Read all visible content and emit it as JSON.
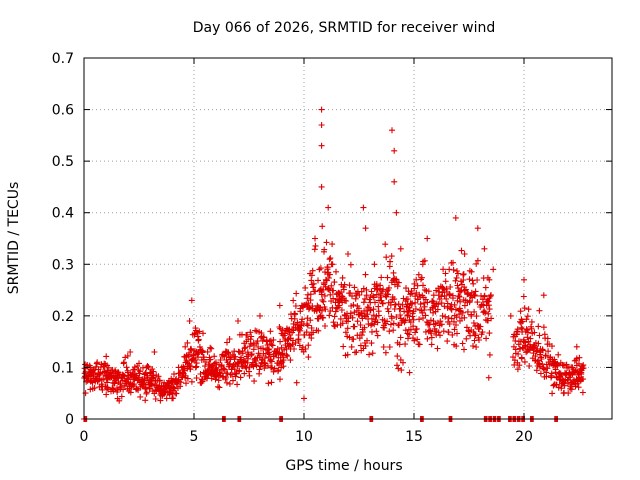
{
  "chart_data": {
    "type": "scatter",
    "title": "Day 066 of 2026, SRMTID for receiver wind",
    "xlabel": "GPS time / hours",
    "ylabel": "SRMTID / TECUs",
    "xlim": [
      0,
      24
    ],
    "ylim": [
      0,
      0.7
    ],
    "xticks": [
      0,
      5,
      10,
      15,
      20
    ],
    "yticks": [
      0,
      0.1,
      0.2,
      0.3,
      0.4,
      0.5,
      0.6,
      0.7
    ],
    "xtick_labels": [
      "0",
      "5",
      "10",
      "15",
      "20"
    ],
    "ytick_labels": [
      "0",
      "0.1",
      "0.2",
      "0.3",
      "0.4",
      "0.5",
      "0.6",
      "0.7"
    ],
    "grid": true,
    "marker": "plus",
    "color": "#e00000",
    "envelope": {
      "x": [
        0,
        0.5,
        1.0,
        1.5,
        2.0,
        2.5,
        3.0,
        3.5,
        4.0,
        4.5,
        5.0,
        5.5,
        6.0,
        6.5,
        7.0,
        7.5,
        8.0,
        8.5,
        9.0,
        9.5,
        10.0,
        10.5,
        11.0,
        11.5,
        12.0,
        12.5,
        13.0,
        13.5,
        14.0,
        14.5,
        15.0,
        15.5,
        16.0,
        16.5,
        17.0,
        17.5,
        18.0,
        18.5,
        19.0,
        19.5,
        20.0,
        20.5,
        21.0,
        21.5,
        22.0,
        22.5,
        22.7
      ],
      "median": [
        0.08,
        0.09,
        0.08,
        0.07,
        0.08,
        0.08,
        0.07,
        0.06,
        0.06,
        0.09,
        0.14,
        0.11,
        0.09,
        0.1,
        0.12,
        0.13,
        0.13,
        0.12,
        0.13,
        0.16,
        0.17,
        0.24,
        0.27,
        0.22,
        0.21,
        0.2,
        0.2,
        0.22,
        0.24,
        0.19,
        0.21,
        0.22,
        0.2,
        0.22,
        0.25,
        0.22,
        0.2,
        0.21,
        null,
        0.15,
        0.17,
        0.13,
        0.12,
        0.09,
        0.08,
        0.09,
        0.09
      ],
      "spread": [
        0.03,
        0.03,
        0.03,
        0.03,
        0.03,
        0.03,
        0.03,
        0.02,
        0.02,
        0.03,
        0.05,
        0.04,
        0.03,
        0.04,
        0.04,
        0.05,
        0.05,
        0.04,
        0.05,
        0.06,
        0.07,
        0.08,
        0.09,
        0.07,
        0.07,
        0.07,
        0.07,
        0.08,
        0.1,
        0.07,
        0.06,
        0.07,
        0.06,
        0.08,
        0.08,
        0.07,
        0.08,
        0.07,
        null,
        0.05,
        0.06,
        0.05,
        0.05,
        0.03,
        0.03,
        0.03,
        0.03
      ]
    },
    "points": [
      [
        0.1,
        0.08
      ],
      [
        0.3,
        0.1
      ],
      [
        0.6,
        0.11
      ],
      [
        1.0,
        0.09
      ],
      [
        1.5,
        0.06
      ],
      [
        2.0,
        0.09
      ],
      [
        2.1,
        0.13
      ],
      [
        2.5,
        0.08
      ],
      [
        3.0,
        0.09
      ],
      [
        3.2,
        0.13
      ],
      [
        3.6,
        0.05
      ],
      [
        4.0,
        0.04
      ],
      [
        4.3,
        0.1
      ],
      [
        4.6,
        0.14
      ],
      [
        4.8,
        0.19
      ],
      [
        4.9,
        0.23
      ],
      [
        5.2,
        0.13
      ],
      [
        5.5,
        0.09
      ],
      [
        6.0,
        0.11
      ],
      [
        6.5,
        0.13
      ],
      [
        7.0,
        0.19
      ],
      [
        7.6,
        0.16
      ],
      [
        8.0,
        0.2
      ],
      [
        8.5,
        0.1
      ],
      [
        8.9,
        0.22
      ],
      [
        9.3,
        0.14
      ],
      [
        9.9,
        0.22
      ],
      [
        10.0,
        0.04
      ],
      [
        10.2,
        0.12
      ],
      [
        10.5,
        0.35
      ],
      [
        10.7,
        0.29
      ],
      [
        10.8,
        0.6
      ],
      [
        10.8,
        0.57
      ],
      [
        10.8,
        0.53
      ],
      [
        10.8,
        0.45
      ],
      [
        11.1,
        0.41
      ],
      [
        11.3,
        0.3
      ],
      [
        11.6,
        0.22
      ],
      [
        12.0,
        0.32
      ],
      [
        12.4,
        0.24
      ],
      [
        12.7,
        0.41
      ],
      [
        12.8,
        0.37
      ],
      [
        13.2,
        0.3
      ],
      [
        13.5,
        0.24
      ],
      [
        14.0,
        0.56
      ],
      [
        14.1,
        0.52
      ],
      [
        14.1,
        0.46
      ],
      [
        14.2,
        0.4
      ],
      [
        14.4,
        0.33
      ],
      [
        14.7,
        0.2
      ],
      [
        14.8,
        0.09
      ],
      [
        15.1,
        0.27
      ],
      [
        15.4,
        0.3
      ],
      [
        15.6,
        0.35
      ],
      [
        15.9,
        0.24
      ],
      [
        16.3,
        0.2
      ],
      [
        16.6,
        0.29
      ],
      [
        16.9,
        0.39
      ],
      [
        17.3,
        0.32
      ],
      [
        17.6,
        0.2
      ],
      [
        17.9,
        0.37
      ],
      [
        18.2,
        0.33
      ],
      [
        18.4,
        0.08
      ],
      [
        18.6,
        0.29
      ],
      [
        19.4,
        0.2
      ],
      [
        19.5,
        0.12
      ],
      [
        20.0,
        0.27
      ],
      [
        20.2,
        0.15
      ],
      [
        20.7,
        0.21
      ],
      [
        20.9,
        0.24
      ],
      [
        21.2,
        0.12
      ],
      [
        21.5,
        0.08
      ],
      [
        21.8,
        0.05
      ],
      [
        22.2,
        0.1
      ],
      [
        22.4,
        0.14
      ],
      [
        22.6,
        0.09
      ]
    ],
    "baseline_points": [
      [
        0.0,
        0.0
      ],
      [
        6.3,
        0.0
      ],
      [
        7.0,
        0.0
      ],
      [
        8.9,
        0.0
      ],
      [
        13.0,
        0.0
      ],
      [
        15.3,
        0.0
      ],
      [
        16.6,
        0.0
      ],
      [
        18.2,
        0.0
      ],
      [
        18.4,
        0.0
      ],
      [
        18.6,
        0.0
      ],
      [
        18.8,
        0.0
      ],
      [
        19.3,
        0.0
      ],
      [
        19.5,
        0.0
      ],
      [
        19.7,
        0.0
      ],
      [
        19.9,
        0.0
      ],
      [
        20.3,
        0.0
      ],
      [
        21.4,
        0.0
      ]
    ]
  }
}
